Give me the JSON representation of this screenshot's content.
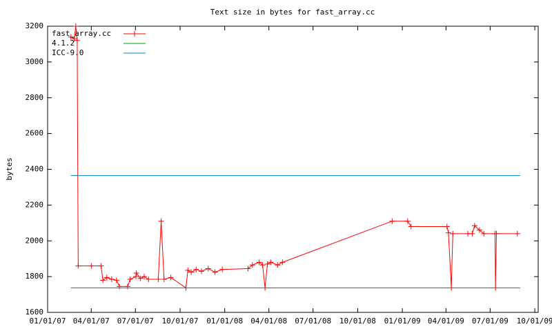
{
  "chart_data": {
    "type": "line",
    "title": "Text size in bytes for fast_array.cc",
    "ylabel": "bytes",
    "xlim": [
      "01/01/07",
      "10/08/09"
    ],
    "xticks": [
      "01/01/07",
      "04/01/07",
      "07/01/07",
      "10/01/07",
      "01/01/08",
      "04/01/08",
      "07/01/08",
      "10/01/08",
      "01/01/09",
      "04/01/09",
      "07/01/09",
      "10/01/09"
    ],
    "ylim": [
      1600,
      3200
    ],
    "yticks": [
      1600,
      1800,
      2000,
      2200,
      2400,
      2600,
      2800,
      3000,
      3200
    ],
    "legend": "top-left",
    "series": [
      {
        "name": "fast_array.cc",
        "color": "#ff0000",
        "markers": true,
        "x": [
          "02/18/07",
          "02/25/07",
          "02/28/07",
          "03/03/07",
          "03/05/07",
          "04/01/07",
          "04/21/07",
          "04/25/07",
          "05/03/07",
          "05/13/07",
          "05/23/07",
          "05/29/07",
          "06/15/07",
          "06/20/07",
          "07/02/07",
          "07/03/07",
          "07/11/07",
          "07/19/07",
          "07/28/07",
          "08/17/07",
          "08/23/07",
          "08/29/07",
          "09/12/07",
          "10/13/07",
          "10/17/07",
          "10/24/07",
          "11/03/07",
          "11/14/07",
          "11/28/07",
          "12/12/07",
          "12/27/07",
          "02/18/08",
          "02/27/08",
          "03/12/08",
          "03/19/08",
          "03/24/08",
          "03/29/08",
          "04/05/08",
          "04/19/08",
          "04/29/08",
          "12/11/08",
          "01/12/09",
          "01/19/09",
          "04/03/09",
          "04/06/09",
          "04/12/09",
          "04/15/09",
          "05/16/09",
          "05/25/09",
          "05/30/09",
          "06/09/09",
          "06/18/09",
          "07/11/09",
          "07/12/09",
          "07/14/09",
          "08/26/09"
        ],
        "values": [
          3140,
          3130,
          3200,
          3120,
          1860,
          1860,
          1860,
          1780,
          1795,
          1785,
          1780,
          1745,
          1745,
          1785,
          1800,
          1820,
          1790,
          1800,
          1785,
          1785,
          2110,
          1785,
          1795,
          1737,
          1835,
          1825,
          1840,
          1830,
          1845,
          1825,
          1840,
          1845,
          1865,
          1880,
          1865,
          1737,
          1870,
          1880,
          1865,
          1880,
          2110,
          2110,
          2080,
          2080,
          2045,
          1737,
          2040,
          2040,
          2040,
          2085,
          2060,
          2040,
          2040,
          1737,
          2040,
          2040
        ]
      },
      {
        "name": "4.1.2",
        "color": "#00a000",
        "markers": false,
        "x": [
          "02/18/07",
          "09/01/09"
        ],
        "values": [
          1737,
          1737
        ]
      },
      {
        "name": "ICC-9.0",
        "color": "#0080c0",
        "markers": false,
        "x": [
          "02/18/07",
          "09/01/09"
        ],
        "values": [
          2365,
          2365
        ]
      }
    ]
  }
}
